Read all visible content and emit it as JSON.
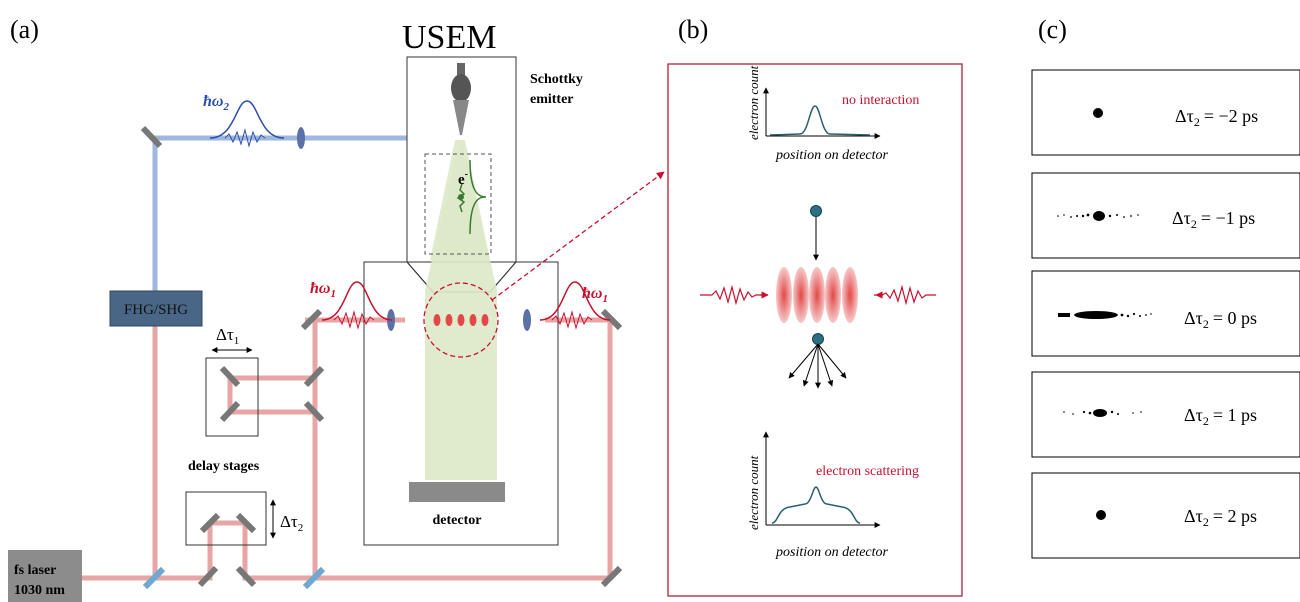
{
  "panels": {
    "a": "(a)",
    "b": "(b)",
    "c": "(c)"
  },
  "usem_title": "USEM",
  "labels": {
    "schottky_line1": "Schottky",
    "schottky_line2": "emitter",
    "electron": "e",
    "electron_sup": "-",
    "hw2": "ħω",
    "hw2_sub": "2",
    "hw1_left": "ħω",
    "hw1_left_sub": "1",
    "hw1_right": "ħω",
    "hw1_right_sub": "1",
    "fhg_shg": "FHG/SHG",
    "delay1": "Δτ",
    "delay1_sub": "1",
    "delay2": "Δτ",
    "delay2_sub": "2",
    "delay_stages": "delay stages",
    "detector": "detector",
    "laser_line1": "fs laser",
    "laser_line2": "1030 nm"
  },
  "panel_b": {
    "ylabel_top": "electron count",
    "xlabel_top": "position on detector",
    "status_top": "no interaction",
    "ylabel_bottom": "electron count",
    "xlabel_bottom": "position on detector",
    "status_bottom": "electron scattering"
  },
  "panel_c": {
    "rows": [
      {
        "label": "Δτ",
        "sub": "2",
        "value": "= −2 ps"
      },
      {
        "label": "Δτ",
        "sub": "2",
        "value": "= −1 ps"
      },
      {
        "label": "Δτ",
        "sub": "2",
        "value": "= 0 ps"
      },
      {
        "label": "Δτ",
        "sub": "2",
        "value": "= 1 ps"
      },
      {
        "label": "Δτ",
        "sub": "2",
        "value": "= 2 ps"
      }
    ]
  },
  "colors": {
    "red_beam": "#e8a5a5",
    "blue_beam": "#9fb6df",
    "red_accent": "#c8102e",
    "blue_accent": "#2a4fa8",
    "fhg_box": "#4a6687",
    "laser_box": "#8c8c8c",
    "green_cone": "#dde9c8",
    "detector_gray": "#8a8a8a"
  }
}
